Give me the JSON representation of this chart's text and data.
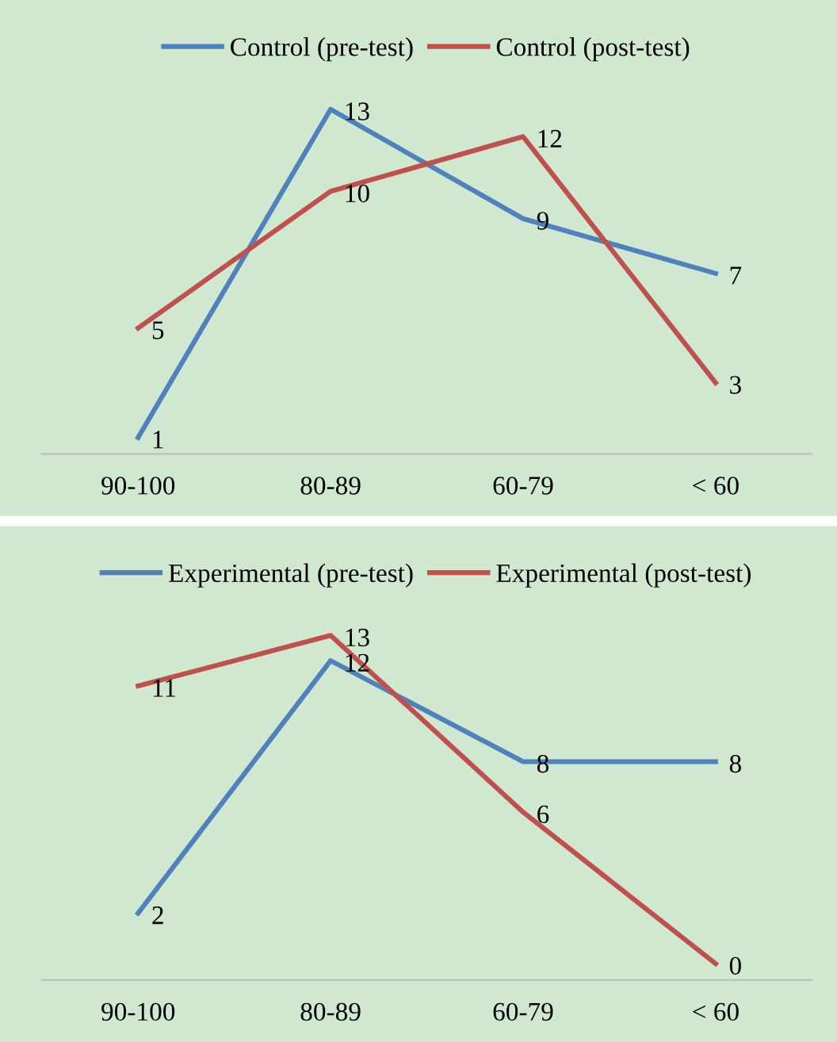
{
  "chart_data": [
    {
      "type": "line",
      "categories": [
        "90-100",
        "80-89",
        "60-79",
        "< 60"
      ],
      "data_labels": true,
      "legend": "top",
      "grid": false,
      "tick_labels": "x",
      "series": [
        {
          "name": "Control (pre-test)",
          "color": "#4f81bd",
          "values": [
            1,
            13,
            9,
            7
          ]
        },
        {
          "name": "Control (post-test)",
          "color": "#c0504d",
          "values": [
            5,
            10,
            12,
            3
          ]
        }
      ]
    },
    {
      "type": "line",
      "categories": [
        "90-100",
        "80-89",
        "60-79",
        "< 60"
      ],
      "data_labels": true,
      "legend": "top",
      "grid": false,
      "tick_labels": "x",
      "series": [
        {
          "name": "Experimental (pre-test)",
          "color": "#4f81bd",
          "values": [
            2,
            12,
            8,
            8
          ]
        },
        {
          "name": "Experimental (post-test)",
          "color": "#c0504d",
          "values": [
            11,
            13,
            6,
            0
          ]
        }
      ]
    }
  ]
}
